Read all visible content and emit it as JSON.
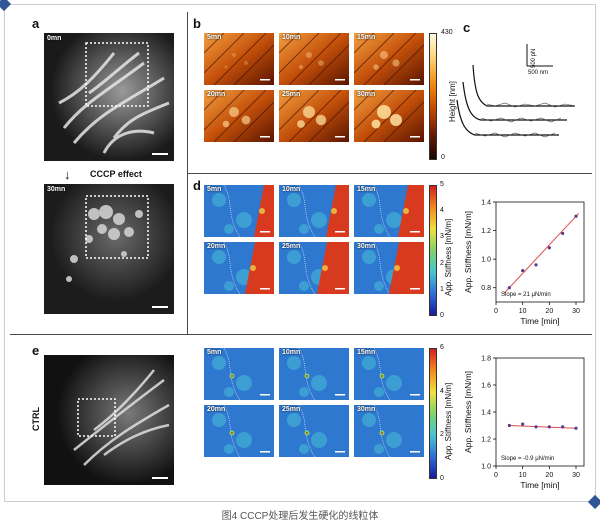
{
  "panels": {
    "a": {
      "label": "a",
      "time_before": "0mn",
      "arrow_text": "CCCP effect",
      "time_after": "30mn"
    },
    "b": {
      "label": "b",
      "times": [
        "5mn",
        "10mn",
        "15mn",
        "20mn",
        "25mn",
        "30mn"
      ],
      "colorbar_label": "Height [nm]",
      "colorbar_max": "430",
      "colorbar_min": "0"
    },
    "c": {
      "label": "c",
      "scale_force": "500 pN",
      "scale_length": "500 nm"
    },
    "d": {
      "label": "d",
      "times": [
        "5mn",
        "10mn",
        "15mn",
        "20mn",
        "25mn",
        "30mn"
      ],
      "colorbar_label": "App. Stiffness [mN/m]",
      "colorbar_ticks": [
        "5",
        "4",
        "3",
        "2",
        "1",
        "0"
      ]
    },
    "e": {
      "label": "e",
      "side_label": "CTRL",
      "times": [
        "5mn",
        "10mn",
        "15mn",
        "20mn",
        "25mn",
        "30mn"
      ],
      "colorbar_label": "App. Stiffness [mN/m]",
      "colorbar_ticks": [
        "6",
        "4",
        "2",
        "0"
      ]
    }
  },
  "chart_data": [
    {
      "type": "scatter",
      "panel": "d",
      "xlabel": "Time [min]",
      "ylabel": "App. Stiffness [mN/m]",
      "xticks": [
        "0",
        "10",
        "20",
        "30"
      ],
      "yticks": [
        "0.8",
        "1.0",
        "1.2",
        "1.4"
      ],
      "xlim": [
        0,
        33
      ],
      "ylim": [
        0.7,
        1.4
      ],
      "x": [
        5,
        10,
        15,
        20,
        25,
        30
      ],
      "y": [
        0.8,
        0.92,
        0.96,
        1.08,
        1.18,
        1.3
      ],
      "fit": {
        "x": [
          3,
          31
        ],
        "y": [
          0.76,
          1.32
        ]
      },
      "annotation": "Slope = 21 μN/min",
      "point_color": "#5a3b8c",
      "line_color": "#d94f4f"
    },
    {
      "type": "scatter",
      "panel": "e",
      "xlabel": "Time [min]",
      "ylabel": "App. Stiffness [mN/m]",
      "xticks": [
        "0",
        "10",
        "20",
        "30"
      ],
      "yticks": [
        "1.0",
        "1.2",
        "1.4",
        "1.6",
        "1.8"
      ],
      "xlim": [
        0,
        33
      ],
      "ylim": [
        1.0,
        1.8
      ],
      "x": [
        5,
        10,
        15,
        20,
        25,
        30
      ],
      "y": [
        1.3,
        1.31,
        1.29,
        1.29,
        1.29,
        1.28
      ],
      "fit": {
        "x": [
          5,
          30
        ],
        "y": [
          1.3,
          1.28
        ]
      },
      "annotation": "Slope = -0.9 μN/min",
      "point_color": "#5a3b8c",
      "line_color": "#d94f4f"
    }
  ],
  "caption": "图4 CCCP处理后发生硬化的线粒体"
}
